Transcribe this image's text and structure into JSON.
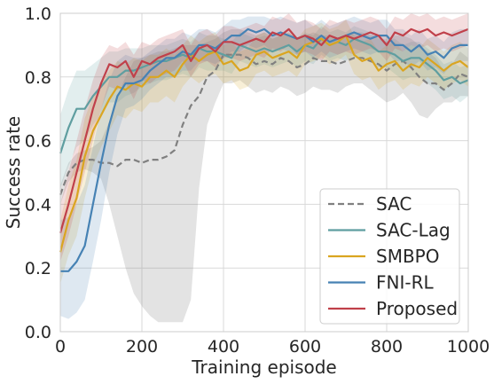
{
  "chart_data": {
    "type": "line",
    "xlabel": "Training episode",
    "ylabel": "Success rate",
    "xlim": [
      0,
      1000
    ],
    "ylim": [
      0,
      1
    ],
    "xticks": [
      0,
      200,
      400,
      600,
      800,
      1000
    ],
    "yticks": [
      0.0,
      0.2,
      0.4,
      0.6,
      0.8,
      1.0
    ],
    "xtick_labels": [
      "0",
      "200",
      "400",
      "600",
      "800",
      "1000"
    ],
    "ytick_labels": [
      "0.0",
      "0.2",
      "0.4",
      "0.6",
      "0.8",
      "1.0"
    ],
    "grid": true,
    "legend_position": "bottom-right",
    "series": [
      {
        "name": "SAC",
        "color": "#808080",
        "dashed": true,
        "x": [
          0,
          20,
          40,
          60,
          80,
          100,
          120,
          140,
          160,
          180,
          200,
          220,
          240,
          260,
          280,
          300,
          320,
          340,
          360,
          380,
          400,
          420,
          440,
          460,
          480,
          500,
          520,
          540,
          560,
          580,
          600,
          620,
          640,
          660,
          680,
          700,
          720,
          740,
          760,
          780,
          800,
          820,
          840,
          860,
          880,
          900,
          920,
          940,
          960,
          980,
          1000
        ],
        "y": [
          0.43,
          0.5,
          0.53,
          0.54,
          0.54,
          0.53,
          0.53,
          0.52,
          0.54,
          0.54,
          0.53,
          0.54,
          0.54,
          0.55,
          0.57,
          0.65,
          0.71,
          0.74,
          0.8,
          0.82,
          0.87,
          0.87,
          0.87,
          0.86,
          0.84,
          0.85,
          0.84,
          0.86,
          0.85,
          0.83,
          0.84,
          0.86,
          0.85,
          0.85,
          0.84,
          0.85,
          0.86,
          0.86,
          0.85,
          0.84,
          0.82,
          0.84,
          0.85,
          0.83,
          0.8,
          0.78,
          0.78,
          0.76,
          0.78,
          0.81,
          0.8
        ],
        "lower": [
          0.4,
          0.47,
          0.5,
          0.51,
          0.5,
          0.48,
          0.4,
          0.3,
          0.2,
          0.12,
          0.08,
          0.05,
          0.03,
          0.03,
          0.03,
          0.03,
          0.1,
          0.45,
          0.65,
          0.72,
          0.78,
          0.78,
          0.79,
          0.77,
          0.75,
          0.76,
          0.75,
          0.77,
          0.76,
          0.74,
          0.75,
          0.77,
          0.76,
          0.76,
          0.75,
          0.77,
          0.78,
          0.78,
          0.76,
          0.74,
          0.72,
          0.73,
          0.75,
          0.72,
          0.68,
          0.67,
          0.7,
          0.72,
          0.72,
          0.74,
          0.74
        ],
        "upper": [
          0.46,
          0.53,
          0.56,
          0.57,
          0.58,
          0.6,
          0.66,
          0.74,
          0.8,
          0.85,
          0.86,
          0.87,
          0.88,
          0.88,
          0.89,
          0.9,
          0.9,
          0.9,
          0.91,
          0.92,
          0.94,
          0.95,
          0.95,
          0.94,
          0.93,
          0.94,
          0.93,
          0.94,
          0.93,
          0.92,
          0.93,
          0.94,
          0.93,
          0.93,
          0.92,
          0.93,
          0.94,
          0.94,
          0.93,
          0.93,
          0.91,
          0.93,
          0.93,
          0.92,
          0.9,
          0.88,
          0.86,
          0.82,
          0.84,
          0.88,
          0.86
        ]
      },
      {
        "name": "SAC-Lag",
        "color": "#5f9ea0",
        "dashed": false,
        "x": [
          0,
          20,
          40,
          60,
          80,
          100,
          120,
          140,
          160,
          180,
          200,
          220,
          240,
          260,
          280,
          300,
          320,
          340,
          360,
          380,
          400,
          420,
          440,
          460,
          480,
          500,
          520,
          540,
          560,
          580,
          600,
          620,
          640,
          660,
          680,
          700,
          720,
          740,
          760,
          780,
          800,
          820,
          840,
          860,
          880,
          900,
          920,
          940,
          960,
          980,
          1000
        ],
        "y": [
          0.56,
          0.64,
          0.7,
          0.7,
          0.74,
          0.77,
          0.8,
          0.8,
          0.82,
          0.82,
          0.83,
          0.84,
          0.85,
          0.85,
          0.86,
          0.87,
          0.86,
          0.89,
          0.88,
          0.88,
          0.87,
          0.86,
          0.9,
          0.89,
          0.88,
          0.89,
          0.88,
          0.89,
          0.9,
          0.88,
          0.9,
          0.89,
          0.92,
          0.9,
          0.91,
          0.9,
          0.92,
          0.91,
          0.9,
          0.88,
          0.88,
          0.87,
          0.85,
          0.86,
          0.86,
          0.84,
          0.82,
          0.79,
          0.8,
          0.78,
          0.79
        ],
        "lower": [
          0.45,
          0.52,
          0.58,
          0.6,
          0.65,
          0.68,
          0.72,
          0.72,
          0.74,
          0.75,
          0.77,
          0.78,
          0.79,
          0.79,
          0.8,
          0.81,
          0.8,
          0.83,
          0.82,
          0.82,
          0.82,
          0.81,
          0.85,
          0.84,
          0.83,
          0.84,
          0.83,
          0.84,
          0.85,
          0.83,
          0.85,
          0.84,
          0.87,
          0.85,
          0.86,
          0.85,
          0.87,
          0.86,
          0.85,
          0.83,
          0.83,
          0.81,
          0.79,
          0.8,
          0.8,
          0.78,
          0.76,
          0.73,
          0.74,
          0.72,
          0.74
        ],
        "upper": [
          0.68,
          0.76,
          0.82,
          0.82,
          0.84,
          0.86,
          0.88,
          0.88,
          0.89,
          0.89,
          0.89,
          0.9,
          0.9,
          0.9,
          0.91,
          0.92,
          0.91,
          0.94,
          0.93,
          0.93,
          0.92,
          0.91,
          0.94,
          0.93,
          0.92,
          0.93,
          0.92,
          0.93,
          0.94,
          0.92,
          0.94,
          0.93,
          0.96,
          0.94,
          0.95,
          0.94,
          0.96,
          0.95,
          0.94,
          0.92,
          0.92,
          0.92,
          0.9,
          0.91,
          0.91,
          0.89,
          0.87,
          0.84,
          0.85,
          0.83,
          0.84
        ]
      },
      {
        "name": "SMBPO",
        "color": "#daa520",
        "dashed": false,
        "x": [
          0,
          20,
          40,
          60,
          80,
          100,
          120,
          140,
          160,
          180,
          200,
          220,
          240,
          260,
          280,
          300,
          320,
          340,
          360,
          380,
          400,
          420,
          440,
          460,
          480,
          500,
          520,
          540,
          560,
          580,
          600,
          620,
          640,
          660,
          680,
          700,
          720,
          740,
          760,
          780,
          800,
          820,
          840,
          860,
          880,
          900,
          920,
          940,
          960,
          980,
          1000
        ],
        "y": [
          0.25,
          0.35,
          0.42,
          0.55,
          0.63,
          0.68,
          0.73,
          0.77,
          0.76,
          0.78,
          0.77,
          0.8,
          0.8,
          0.82,
          0.8,
          0.84,
          0.87,
          0.85,
          0.87,
          0.88,
          0.84,
          0.85,
          0.82,
          0.83,
          0.87,
          0.88,
          0.86,
          0.87,
          0.88,
          0.86,
          0.9,
          0.91,
          0.92,
          0.9,
          0.91,
          0.93,
          0.87,
          0.85,
          0.86,
          0.82,
          0.84,
          0.85,
          0.82,
          0.84,
          0.83,
          0.86,
          0.84,
          0.82,
          0.84,
          0.85,
          0.83
        ],
        "lower": [
          0.15,
          0.24,
          0.3,
          0.42,
          0.52,
          0.58,
          0.63,
          0.68,
          0.67,
          0.7,
          0.69,
          0.72,
          0.72,
          0.74,
          0.72,
          0.77,
          0.8,
          0.78,
          0.8,
          0.81,
          0.78,
          0.79,
          0.76,
          0.77,
          0.81,
          0.82,
          0.8,
          0.81,
          0.82,
          0.8,
          0.84,
          0.85,
          0.86,
          0.84,
          0.85,
          0.87,
          0.81,
          0.79,
          0.8,
          0.76,
          0.78,
          0.79,
          0.76,
          0.78,
          0.77,
          0.8,
          0.78,
          0.76,
          0.78,
          0.79,
          0.77
        ],
        "upper": [
          0.35,
          0.46,
          0.54,
          0.67,
          0.74,
          0.78,
          0.82,
          0.85,
          0.84,
          0.86,
          0.85,
          0.87,
          0.87,
          0.89,
          0.87,
          0.9,
          0.93,
          0.91,
          0.93,
          0.94,
          0.9,
          0.91,
          0.88,
          0.89,
          0.93,
          0.94,
          0.92,
          0.93,
          0.94,
          0.92,
          0.95,
          0.96,
          0.97,
          0.95,
          0.96,
          0.98,
          0.93,
          0.91,
          0.92,
          0.88,
          0.9,
          0.91,
          0.88,
          0.9,
          0.89,
          0.92,
          0.9,
          0.88,
          0.9,
          0.91,
          0.89
        ]
      },
      {
        "name": "FNI-RL",
        "color": "#4682b4",
        "dashed": false,
        "x": [
          0,
          20,
          40,
          60,
          80,
          100,
          120,
          140,
          160,
          180,
          200,
          220,
          240,
          260,
          280,
          300,
          320,
          340,
          360,
          380,
          400,
          420,
          440,
          460,
          480,
          500,
          520,
          540,
          560,
          580,
          600,
          620,
          640,
          660,
          680,
          700,
          720,
          740,
          760,
          780,
          800,
          820,
          840,
          860,
          880,
          900,
          920,
          940,
          960,
          980,
          1000
        ],
        "y": [
          0.19,
          0.19,
          0.22,
          0.27,
          0.4,
          0.53,
          0.65,
          0.74,
          0.78,
          0.78,
          0.79,
          0.82,
          0.84,
          0.86,
          0.86,
          0.88,
          0.87,
          0.9,
          0.9,
          0.89,
          0.91,
          0.93,
          0.93,
          0.95,
          0.94,
          0.95,
          0.93,
          0.94,
          0.93,
          0.92,
          0.93,
          0.91,
          0.93,
          0.91,
          0.92,
          0.93,
          0.94,
          0.93,
          0.92,
          0.93,
          0.93,
          0.9,
          0.9,
          0.88,
          0.9,
          0.87,
          0.88,
          0.86,
          0.89,
          0.9,
          0.9
        ],
        "lower": [
          0.05,
          0.04,
          0.06,
          0.1,
          0.22,
          0.35,
          0.5,
          0.62,
          0.7,
          0.71,
          0.73,
          0.76,
          0.78,
          0.8,
          0.8,
          0.82,
          0.82,
          0.85,
          0.85,
          0.84,
          0.86,
          0.88,
          0.88,
          0.9,
          0.89,
          0.9,
          0.88,
          0.89,
          0.88,
          0.87,
          0.88,
          0.86,
          0.88,
          0.86,
          0.87,
          0.88,
          0.89,
          0.88,
          0.87,
          0.88,
          0.88,
          0.85,
          0.85,
          0.83,
          0.85,
          0.82,
          0.83,
          0.81,
          0.84,
          0.85,
          0.85
        ],
        "upper": [
          0.35,
          0.36,
          0.4,
          0.46,
          0.58,
          0.7,
          0.79,
          0.85,
          0.87,
          0.86,
          0.86,
          0.88,
          0.9,
          0.92,
          0.92,
          0.94,
          0.93,
          0.95,
          0.95,
          0.94,
          0.96,
          0.98,
          0.98,
          0.99,
          0.99,
          0.99,
          0.98,
          0.99,
          0.98,
          0.97,
          0.98,
          0.96,
          0.98,
          0.96,
          0.97,
          0.98,
          0.99,
          0.98,
          0.97,
          0.98,
          0.98,
          0.95,
          0.95,
          0.93,
          0.95,
          0.92,
          0.93,
          0.91,
          0.94,
          0.95,
          0.95
        ]
      },
      {
        "name": "Proposed",
        "color": "#c0404a",
        "dashed": false,
        "x": [
          0,
          20,
          40,
          60,
          80,
          100,
          120,
          140,
          160,
          180,
          200,
          220,
          240,
          260,
          280,
          300,
          320,
          340,
          360,
          380,
          400,
          420,
          440,
          460,
          480,
          500,
          520,
          540,
          560,
          580,
          600,
          620,
          640,
          660,
          680,
          700,
          720,
          740,
          760,
          780,
          800,
          820,
          840,
          860,
          880,
          900,
          920,
          940,
          960,
          980,
          1000
        ],
        "y": [
          0.31,
          0.4,
          0.5,
          0.6,
          0.7,
          0.78,
          0.84,
          0.83,
          0.85,
          0.8,
          0.85,
          0.84,
          0.86,
          0.87,
          0.88,
          0.9,
          0.85,
          0.89,
          0.9,
          0.88,
          0.91,
          0.91,
          0.9,
          0.91,
          0.92,
          0.91,
          0.94,
          0.93,
          0.95,
          0.92,
          0.93,
          0.92,
          0.9,
          0.93,
          0.92,
          0.93,
          0.92,
          0.93,
          0.94,
          0.93,
          0.9,
          0.94,
          0.93,
          0.95,
          0.94,
          0.95,
          0.93,
          0.94,
          0.93,
          0.94,
          0.95
        ],
        "lower": [
          0.22,
          0.3,
          0.4,
          0.5,
          0.6,
          0.7,
          0.77,
          0.76,
          0.78,
          0.73,
          0.79,
          0.78,
          0.8,
          0.81,
          0.82,
          0.85,
          0.8,
          0.84,
          0.85,
          0.83,
          0.86,
          0.86,
          0.85,
          0.86,
          0.87,
          0.86,
          0.89,
          0.88,
          0.9,
          0.87,
          0.88,
          0.87,
          0.85,
          0.88,
          0.87,
          0.88,
          0.87,
          0.88,
          0.89,
          0.88,
          0.85,
          0.89,
          0.88,
          0.9,
          0.89,
          0.9,
          0.88,
          0.89,
          0.88,
          0.89,
          0.9
        ],
        "upper": [
          0.4,
          0.5,
          0.6,
          0.7,
          0.79,
          0.86,
          0.9,
          0.89,
          0.91,
          0.87,
          0.91,
          0.9,
          0.92,
          0.93,
          0.94,
          0.95,
          0.9,
          0.94,
          0.95,
          0.93,
          0.96,
          0.96,
          0.95,
          0.96,
          0.97,
          0.96,
          0.99,
          0.98,
          1.0,
          0.97,
          0.98,
          0.97,
          0.95,
          0.98,
          0.97,
          0.98,
          0.97,
          0.98,
          0.99,
          0.98,
          0.95,
          0.99,
          0.98,
          1.0,
          0.99,
          1.0,
          0.98,
          0.99,
          0.98,
          0.99,
          1.0
        ]
      }
    ]
  }
}
